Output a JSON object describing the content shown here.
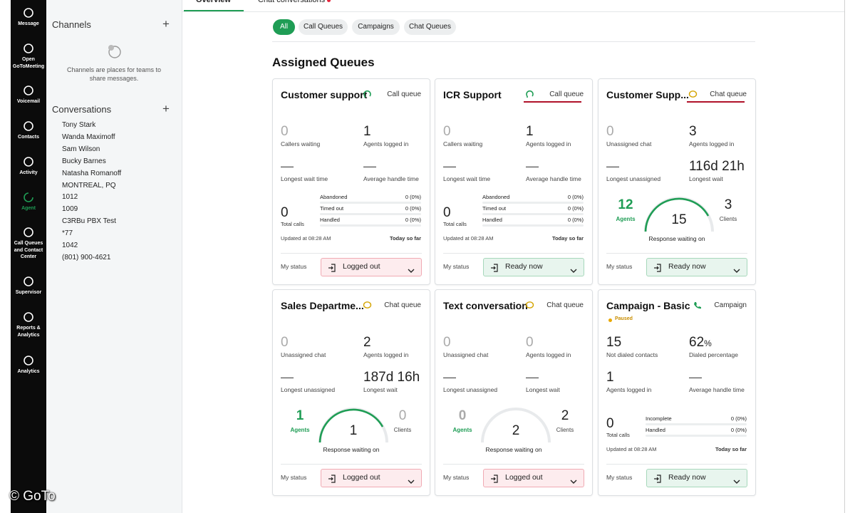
{
  "nav": [
    {
      "label": "Message"
    },
    {
      "label": "Open GoToMeeting"
    },
    {
      "label": "Voicemail"
    },
    {
      "label": "Contacts"
    },
    {
      "label": "Activity"
    },
    {
      "label": "Agent",
      "active": true
    },
    {
      "label": "Call Queues and Contact Center"
    },
    {
      "label": "Supervisor"
    },
    {
      "label": "Reports & Analytics"
    },
    {
      "label": "Analytics"
    }
  ],
  "sidebar": {
    "channels": {
      "title": "Channels",
      "empty_text": "Channels are places for teams to share messages."
    },
    "conversations": {
      "title": "Conversations",
      "items": [
        "Tony Stark",
        "Wanda Maximoff",
        "Sam Wilson",
        "Bucky Barnes",
        "Natasha Romanoff",
        "MONTREAL, PQ",
        "1012",
        "1009",
        "C3RBu PBX Test",
        "*77",
        "1042",
        "(801) 900-4621"
      ]
    }
  },
  "tabs": [
    {
      "label": "Overview",
      "active": true
    },
    {
      "label": "Chat conversations",
      "badge": true
    }
  ],
  "filters": [
    {
      "label": "All",
      "active": true
    },
    {
      "label": "Call Queues"
    },
    {
      "label": "Campaigns"
    },
    {
      "label": "Chat Queues"
    }
  ],
  "heading": "Assigned Queues",
  "cards": [
    {
      "title": "Customer support",
      "tag": {
        "kind": "call",
        "label": "Call queue"
      },
      "stats": [
        {
          "value": "0",
          "label": "Callers waiting"
        },
        {
          "value": "1",
          "label": "Agents logged in"
        },
        {
          "value": "—",
          "label": "Longest wait time"
        },
        {
          "value": "—",
          "label": "Average handle time"
        }
      ],
      "calls": {
        "value": "0",
        "label": "Total calls",
        "rows": [
          {
            "label": "Abandoned",
            "value": "0 (0%)"
          },
          {
            "label": "Timed out",
            "value": "0 (0%)"
          },
          {
            "label": "Handled",
            "value": "0 (0%)"
          }
        ]
      },
      "updated": "Updated at 08:28 AM",
      "period": "Today so far",
      "status": {
        "label": "My status",
        "value": "Logged out",
        "state": "off"
      }
    },
    {
      "title": "ICR Support",
      "tag": {
        "kind": "call",
        "label": "Call queue",
        "highlight": true
      },
      "stats": [
        {
          "value": "0",
          "label": "Callers waiting"
        },
        {
          "value": "1",
          "label": "Agents logged in"
        },
        {
          "value": "—",
          "label": "Longest wait time"
        },
        {
          "value": "—",
          "label": "Average handle time"
        }
      ],
      "calls": {
        "value": "0",
        "label": "Total calls",
        "rows": [
          {
            "label": "Abandoned",
            "value": "0 (0%)"
          },
          {
            "label": "Timed out",
            "value": "0 (0%)"
          },
          {
            "label": "Handled",
            "value": "0 (0%)"
          }
        ]
      },
      "updated": "Updated at 08:28 AM",
      "period": "Today so far",
      "status": {
        "label": "My status",
        "value": "Ready now",
        "state": "on"
      }
    },
    {
      "title": "Customer Supp...",
      "tag": {
        "kind": "chat",
        "label": "Chat queue",
        "highlight": true
      },
      "stats": [
        {
          "value": "0",
          "label": "Unassigned chat"
        },
        {
          "value": "3",
          "label": "Agents logged in"
        },
        {
          "value": "—",
          "label": "Longest unassigned"
        },
        {
          "value": "116d 21h",
          "label": "Longest wait"
        }
      ],
      "gauge": {
        "agents": {
          "value": "12",
          "label": "Agents"
        },
        "center": "15",
        "clients": {
          "value": "3",
          "label": "Clients"
        },
        "caption": "Response waiting on"
      },
      "status": {
        "label": "My status",
        "value": "Ready now",
        "state": "on"
      }
    },
    {
      "title": "Sales Departme...",
      "tag": {
        "kind": "chat",
        "label": "Chat queue"
      },
      "stats": [
        {
          "value": "0",
          "label": "Unassigned chat"
        },
        {
          "value": "2",
          "label": "Agents logged in"
        },
        {
          "value": "—",
          "label": "Longest unassigned"
        },
        {
          "value": "187d 16h",
          "label": "Longest wait"
        }
      ],
      "gauge": {
        "agents": {
          "value": "1",
          "label": "Agents"
        },
        "center": "1",
        "clients": {
          "value": "0",
          "label": "Clients"
        },
        "caption": "Response waiting on"
      },
      "status": {
        "label": "My status",
        "value": "Logged out",
        "state": "off"
      }
    },
    {
      "title": "Text conversation",
      "tag": {
        "kind": "chat",
        "label": "Chat queue"
      },
      "stats": [
        {
          "value": "0",
          "label": "Unassigned chat"
        },
        {
          "value": "0",
          "label": "Agents logged in"
        },
        {
          "value": "—",
          "label": "Longest unassigned"
        },
        {
          "value": "—",
          "label": "Longest wait"
        }
      ],
      "gauge": {
        "agents": {
          "value": "0",
          "label": "Agents"
        },
        "center": "2",
        "clients": {
          "value": "2",
          "label": "Clients"
        },
        "caption": "Response waiting on"
      },
      "status": {
        "label": "My status",
        "value": "Logged out",
        "state": "off"
      }
    },
    {
      "title": "Campaign - Basic",
      "tag": {
        "kind": "campaign",
        "label": "Campaign"
      },
      "note": "Paused",
      "stats": [
        {
          "value": "15",
          "label": "Not dialed contacts"
        },
        {
          "value": "62",
          "unit": "%",
          "label": "Dialed percentage"
        },
        {
          "value": "1",
          "label": "Agents logged in"
        },
        {
          "value": "—",
          "label": "Average handle time"
        }
      ],
      "calls": {
        "value": "0",
        "label": "Total calls",
        "rows": [
          {
            "label": "Incomplete",
            "value": "0 (0%)"
          },
          {
            "label": "Handled",
            "value": "0 (0%)"
          }
        ]
      },
      "updated": "Updated at 08:28 AM",
      "period": "Today so far",
      "status": {
        "label": "My status",
        "value": "Ready now",
        "state": "on"
      }
    }
  ],
  "watermark": "© GoTo"
}
